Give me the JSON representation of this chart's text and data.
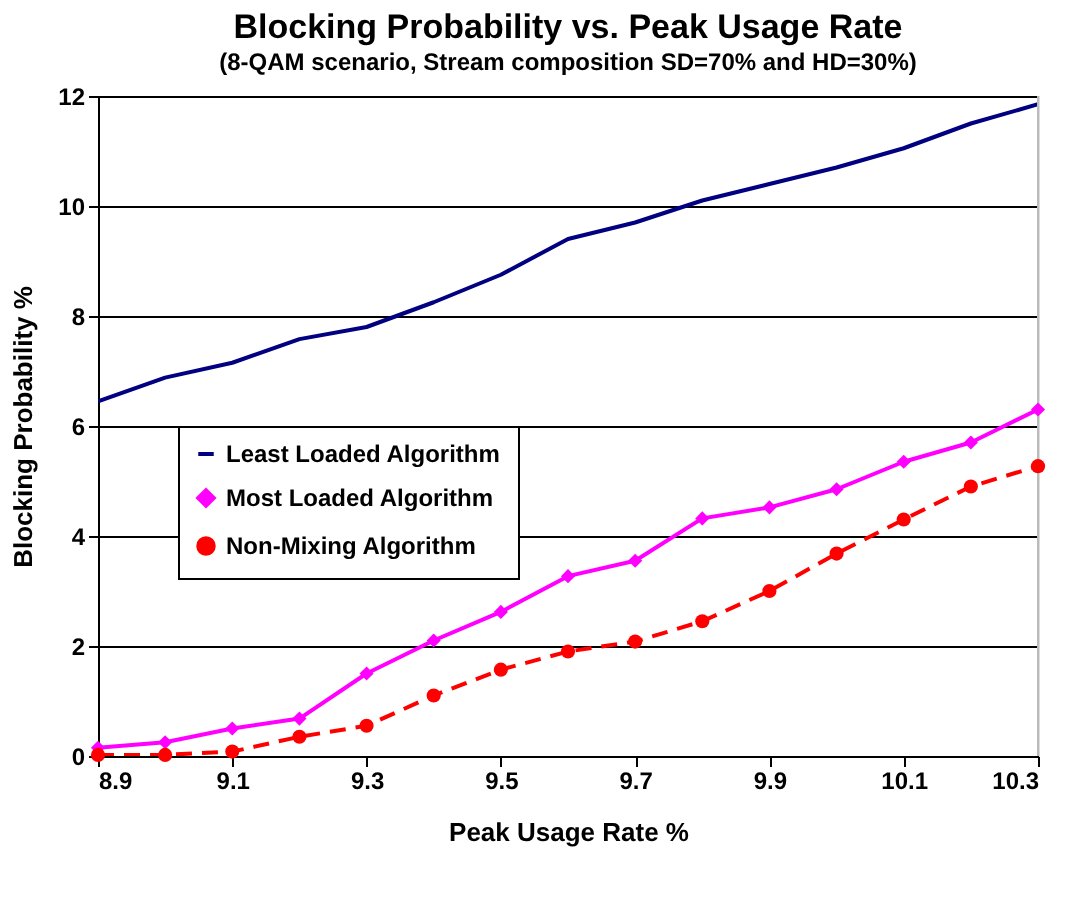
{
  "chart_data": {
    "type": "line",
    "title": "Blocking Probability vs. Peak Usage Rate",
    "subtitle": "(8-QAM scenario, Stream composition SD=70% and HD=30%)",
    "xlabel": "Peak Usage Rate %",
    "ylabel": "Blocking Probability %",
    "x": [
      8.9,
      9.0,
      9.1,
      9.2,
      9.3,
      9.4,
      9.5,
      9.6,
      9.7,
      9.8,
      9.9,
      10.0,
      10.1,
      10.2,
      10.3
    ],
    "xlim": [
      8.9,
      10.3
    ],
    "xticks": [
      8.9,
      9.1,
      9.3,
      9.5,
      9.7,
      9.9,
      10.1,
      10.3
    ],
    "ylim": [
      0,
      12
    ],
    "yticks": [
      0,
      2,
      4,
      6,
      8,
      10,
      12
    ],
    "grid": "y",
    "legend": "left",
    "series": [
      {
        "name": "Least Loaded Algorithm",
        "color": "#000080",
        "marker": "none",
        "line_style": "solid",
        "values": [
          6.45,
          6.88,
          7.15,
          7.58,
          7.8,
          8.25,
          8.75,
          9.4,
          9.7,
          10.1,
          10.4,
          10.7,
          11.05,
          11.5,
          11.85
        ]
      },
      {
        "name": "Most Loaded Algorithm",
        "color": "#ff00ff",
        "marker": "diamond",
        "line_style": "solid",
        "values": [
          0.15,
          0.25,
          0.5,
          0.68,
          1.5,
          2.1,
          2.62,
          3.27,
          3.55,
          4.32,
          4.52,
          4.85,
          5.35,
          5.7,
          6.3
        ]
      },
      {
        "name": "Non-Mixing Algorithm",
        "color": "#ff0000",
        "marker": "circle",
        "line_style": "dashed",
        "values": [
          0.02,
          0.02,
          0.08,
          0.35,
          0.55,
          1.1,
          1.57,
          1.9,
          2.08,
          2.45,
          3.0,
          3.68,
          4.3,
          4.9,
          5.27
        ]
      }
    ]
  }
}
